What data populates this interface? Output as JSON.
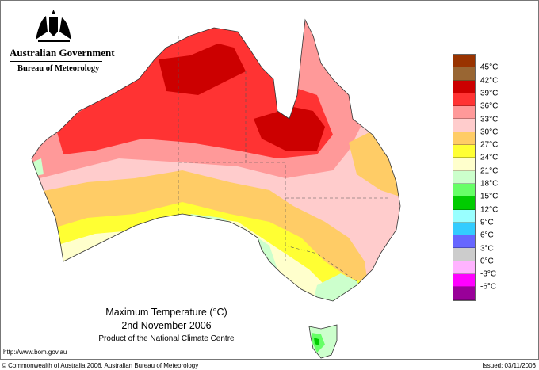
{
  "branding": {
    "government": "Australian Government",
    "agency": "Bureau of Meteorology"
  },
  "map": {
    "title": "Maximum Temperature (°C)",
    "date": "2nd November 2006",
    "product": "Product of the National Climate Centre"
  },
  "legend": {
    "colors": [
      "#993300",
      "#996633",
      "#cc0000",
      "#ff3333",
      "#ff9999",
      "#ffcccc",
      "#ffcc66",
      "#ffff33",
      "#ffffcc",
      "#ccffcc",
      "#66ff66",
      "#00cc00",
      "#99ffff",
      "#33ccff",
      "#6666ff",
      "#cccccc",
      "#ffb3ff",
      "#ff00ff",
      "#990099"
    ],
    "labels": [
      "45°C",
      "42°C",
      "39°C",
      "36°C",
      "33°C",
      "30°C",
      "27°C",
      "24°C",
      "21°C",
      "18°C",
      "15°C",
      "12°C",
      "9°C",
      "6°C",
      "3°C",
      "0°C",
      "-3°C",
      "-6°C"
    ]
  },
  "footer": {
    "url": "http://www.bom.gov.au",
    "copyright": "© Commonwealth of Australia 2006, Australian Bureau of Meteorology",
    "issued": "Issued: 03/11/2006"
  }
}
